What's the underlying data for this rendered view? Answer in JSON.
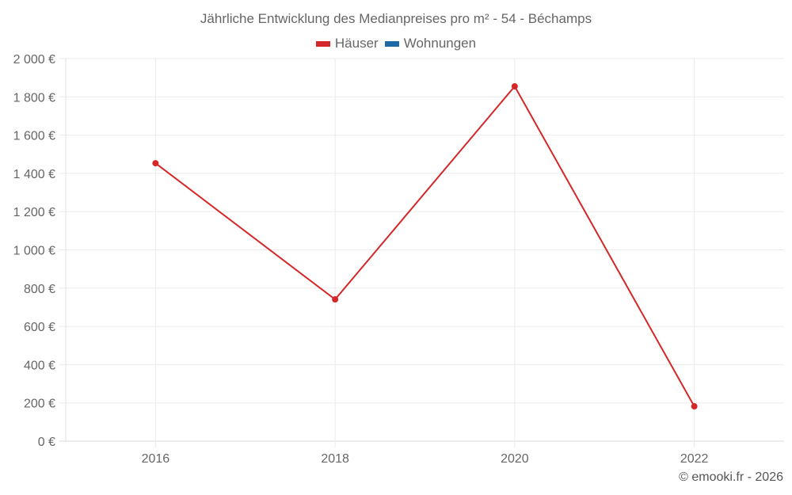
{
  "header": {
    "title": "Jährliche Entwicklung des Medianpreises pro m² - 54 - Béchamps"
  },
  "legend": [
    {
      "label": "Häuser",
      "color": "#d62728"
    },
    {
      "label": "Wohnungen",
      "color": "#1f6aa5"
    }
  ],
  "footer": {
    "credit": "© emooki.fr - 2026"
  },
  "chart_data": {
    "type": "line",
    "title": "Jährliche Entwicklung des Medianpreises pro m² - 54 - Béchamps",
    "xlabel": "",
    "ylabel": "",
    "x": [
      2016,
      2018,
      2020,
      2022
    ],
    "series": [
      {
        "name": "Häuser",
        "color": "#d62728",
        "values": [
          1453,
          741,
          1855,
          182
        ]
      },
      {
        "name": "Wohnungen",
        "color": "#1f6aa5",
        "values": []
      }
    ],
    "ylim": [
      0,
      2000
    ],
    "xlim": [
      2015,
      2023
    ],
    "yticks": [
      "0 €",
      "200 €",
      "400 €",
      "600 €",
      "800 €",
      "1 000 €",
      "1 200 €",
      "1 400 €",
      "1 600 €",
      "1 800 €",
      "2 000 €"
    ],
    "xticks": [
      "2016",
      "2018",
      "2020",
      "2022"
    ],
    "grid": true,
    "legend_position": "top"
  }
}
